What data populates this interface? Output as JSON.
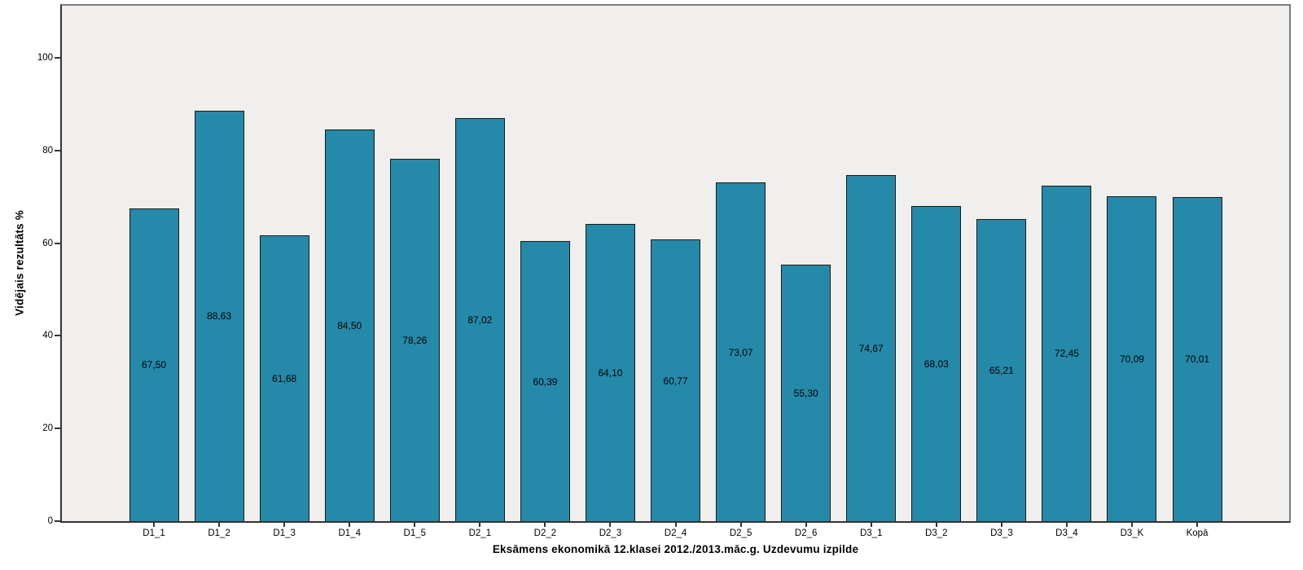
{
  "chart_data": {
    "type": "bar",
    "title": "",
    "xlabel": "Eksāmens ekonomikā 12.klasei 2012./2013.māc.g. Uzdevumu izpilde",
    "ylabel": "Vidējais rezultāts %",
    "categories": [
      "D1_1",
      "D1_2",
      "D1_3",
      "D1_4",
      "D1_5",
      "D2_1",
      "D2_2",
      "D2_3",
      "D2_4",
      "D2_5",
      "D2_6",
      "D3_1",
      "D3_2",
      "D3_3",
      "D3_4",
      "D3_K",
      "Kopā"
    ],
    "values": [
      67.5,
      88.63,
      61.68,
      84.5,
      78.26,
      87.02,
      60.39,
      64.1,
      60.77,
      73.07,
      55.3,
      74.67,
      68.03,
      65.21,
      72.45,
      70.09,
      70.01
    ],
    "value_labels": [
      "67,50",
      "88,63",
      "61,68",
      "84,50",
      "78,26",
      "87,02",
      "60,39",
      "64,10",
      "60,77",
      "73,07",
      "55,30",
      "74,67",
      "68,03",
      "65,21",
      "72,45",
      "70,09",
      "70,01"
    ],
    "yticks": [
      0,
      20,
      40,
      60,
      80,
      100
    ],
    "ylim": [
      0,
      111.25
    ],
    "grid": false,
    "legend": false,
    "value_labels_position": "center-of-bar",
    "colors": {
      "bar_fill": "#2589A9",
      "bar_border": "#1A1A1A",
      "plot_background": "#F0EFED",
      "frame_border": "#7B7B7B",
      "axis_line": "#333333",
      "text": "#000000"
    }
  }
}
